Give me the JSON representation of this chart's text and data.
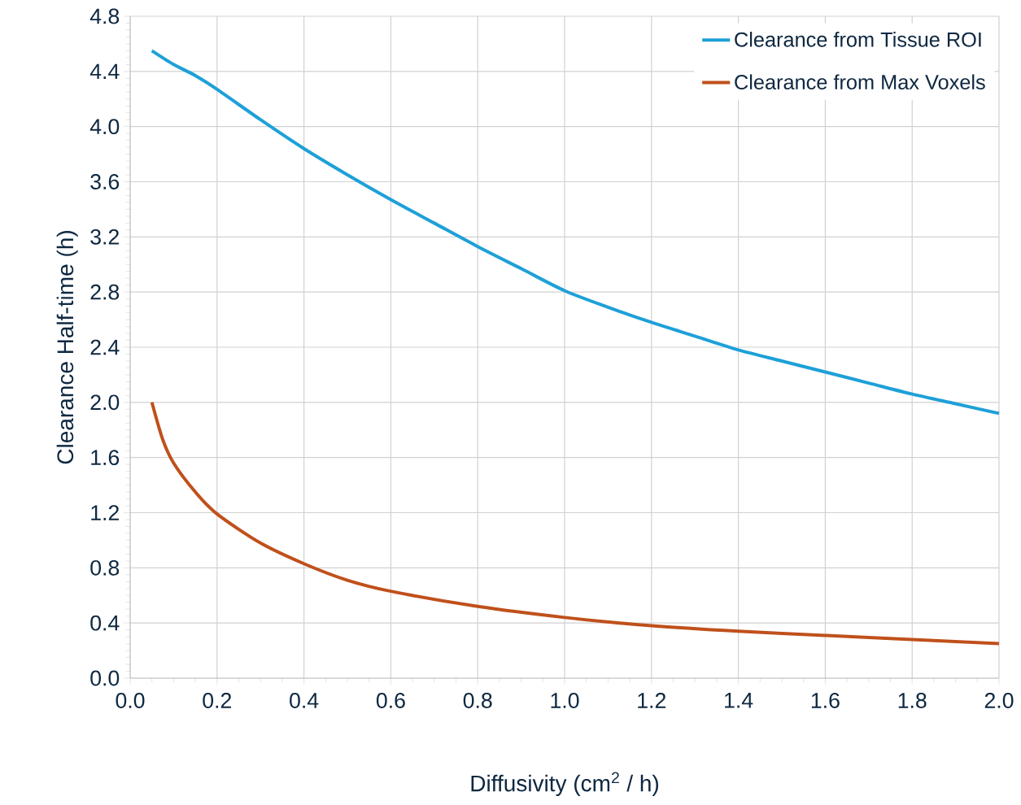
{
  "chart_data": {
    "type": "line",
    "xlabel": "Diffusivity (cm$^{2}$ / h)",
    "ylabel": "Clearance Half-time (h)",
    "xlim": [
      0,
      2
    ],
    "ylim": [
      0,
      4.8
    ],
    "xticks": [
      {
        "value": 0,
        "label": "0.0"
      },
      {
        "value": 0.2,
        "label": "0.2"
      },
      {
        "value": 0.4,
        "label": "0.4"
      },
      {
        "value": 0.6,
        "label": "0.6"
      },
      {
        "value": 0.8,
        "label": "0.8"
      },
      {
        "value": 1,
        "label": "1.0"
      },
      {
        "value": 1.2,
        "label": "1.2"
      },
      {
        "value": 1.4,
        "label": "1.4"
      },
      {
        "value": 1.6,
        "label": "1.6"
      },
      {
        "value": 1.8,
        "label": "1.8"
      },
      {
        "value": 2,
        "label": "2.0"
      }
    ],
    "yticks": [
      {
        "value": 0,
        "label": "0.0"
      },
      {
        "value": 0.4,
        "label": "0.4"
      },
      {
        "value": 0.8,
        "label": "0.8"
      },
      {
        "value": 1.2,
        "label": "1.2"
      },
      {
        "value": 1.6,
        "label": "1.6"
      },
      {
        "value": 2,
        "label": "2.0"
      },
      {
        "value": 2.4,
        "label": "2.4"
      },
      {
        "value": 2.8,
        "label": "2.8"
      },
      {
        "value": 3.2,
        "label": "3.2"
      },
      {
        "value": 3.6,
        "label": "3.6"
      },
      {
        "value": 4,
        "label": "4.0"
      },
      {
        "value": 4.4,
        "label": "4.4"
      },
      {
        "value": 4.8,
        "label": "4.8"
      }
    ],
    "grid": true,
    "legend": "top right",
    "marker": "none",
    "line_style": "solid",
    "series": [
      {
        "name": "Clearance from Tissue ROI",
        "color": "#1ea0d8",
        "x": [
          0.05,
          0.1,
          0.15,
          0.2,
          0.3,
          0.4,
          0.5,
          0.6,
          0.7,
          0.8,
          0.9,
          1.0,
          1.1,
          1.2,
          1.3,
          1.4,
          1.5,
          1.6,
          1.7,
          1.8,
          1.9,
          2.0
        ],
        "values": [
          4.55,
          4.45,
          4.37,
          4.27,
          4.05,
          3.84,
          3.65,
          3.47,
          3.3,
          3.13,
          2.97,
          2.81,
          2.69,
          2.58,
          2.48,
          2.38,
          2.3,
          2.22,
          2.14,
          2.06,
          1.99,
          1.92
        ]
      },
      {
        "name": "Clearance from Max Voxels",
        "color": "#c0501b",
        "x": [
          0.05,
          0.075,
          0.1,
          0.15,
          0.2,
          0.3,
          0.4,
          0.5,
          0.6,
          0.8,
          1.0,
          1.2,
          1.4,
          1.6,
          1.8,
          2.0
        ],
        "values": [
          2.0,
          1.73,
          1.56,
          1.35,
          1.19,
          0.98,
          0.83,
          0.71,
          0.63,
          0.52,
          0.44,
          0.38,
          0.34,
          0.31,
          0.28,
          0.25
        ]
      }
    ]
  }
}
